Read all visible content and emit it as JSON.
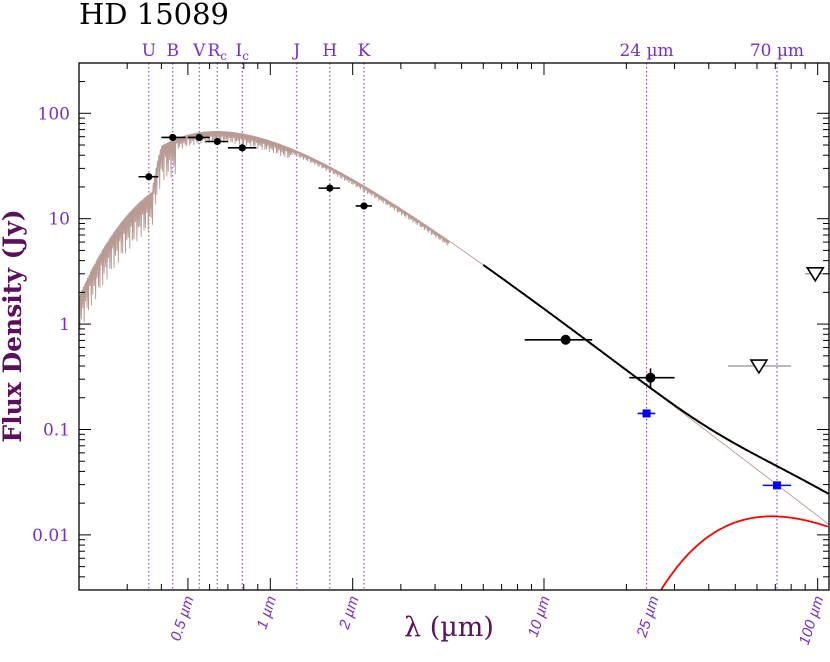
{
  "chart_data": {
    "type": "scatter",
    "title": "HD 15089",
    "xlabel": "λ (µm)",
    "ylabel": "Flux Density (Jy)",
    "xscale": "log",
    "yscale": "log",
    "xlim": [
      0.2,
      110
    ],
    "ylim": [
      0.003,
      300
    ],
    "grid": false,
    "yticks": [
      {
        "value": 100,
        "label": "100"
      },
      {
        "value": 10,
        "label": "10"
      },
      {
        "value": 1,
        "label": "1"
      },
      {
        "value": 0.1,
        "label": "0.1"
      },
      {
        "value": 0.01,
        "label": "0.01"
      }
    ],
    "xticks": [
      {
        "value": 0.5,
        "label": "0.5 µm"
      },
      {
        "value": 1,
        "label": "1 µm"
      },
      {
        "value": 2,
        "label": "2 µm"
      },
      {
        "value": 10,
        "label": "10 µm"
      },
      {
        "value": 25,
        "label": "25 µm"
      },
      {
        "value": 100,
        "label": "100 µm"
      }
    ],
    "bands": [
      {
        "name": "U",
        "sub": "",
        "wavelength": 0.36
      },
      {
        "name": "B",
        "sub": "",
        "wavelength": 0.44
      },
      {
        "name": "V",
        "sub": "",
        "wavelength": 0.55
      },
      {
        "name": "R",
        "sub": "c",
        "wavelength": 0.64
      },
      {
        "name": "I",
        "sub": "c",
        "wavelength": 0.79
      },
      {
        "name": "J",
        "sub": "",
        "wavelength": 1.25
      },
      {
        "name": "H",
        "sub": "",
        "wavelength": 1.65
      },
      {
        "name": "K",
        "sub": "",
        "wavelength": 2.2
      },
      {
        "name": "24 µm",
        "sub": "",
        "wavelength": 23.7
      },
      {
        "name": "70 µm",
        "sub": "",
        "wavelength": 71
      }
    ],
    "series": [
      {
        "kind": "photometry",
        "color": "#000000",
        "points": [
          {
            "x": 0.36,
            "y": 25,
            "xerr": [
              0.33,
              0.39
            ]
          },
          {
            "x": 0.44,
            "y": 59,
            "xerr": [
              0.4,
              0.49
            ]
          },
          {
            "x": 0.55,
            "y": 59,
            "xerr": [
              0.5,
              0.6
            ]
          },
          {
            "x": 0.64,
            "y": 54,
            "xerr": [
              0.58,
              0.7
            ]
          },
          {
            "x": 0.79,
            "y": 47,
            "xerr": [
              0.7,
              0.89
            ]
          },
          {
            "x": 1.65,
            "y": 19.5,
            "xerr": [
              1.5,
              1.8
            ]
          },
          {
            "x": 2.2,
            "y": 13.2,
            "xerr": [
              2.05,
              2.35
            ]
          }
        ]
      },
      {
        "kind": "mid-ir detections",
        "color": "#000000",
        "points": [
          {
            "x": 12,
            "y": 0.71,
            "xerr": [
              8.5,
              15
            ]
          },
          {
            "x": 24.5,
            "y": 0.31,
            "xerr": [
              20.5,
              30
            ],
            "yerr": [
              0.25,
              0.38
            ]
          }
        ]
      },
      {
        "kind": "upper limits",
        "color": "#000000",
        "points": [
          {
            "x": 61,
            "y": 0.4,
            "xerr": [
              47,
              80
            ]
          },
          {
            "x": 98,
            "y": 3.0,
            "xerr": [
              90,
              110
            ]
          }
        ]
      },
      {
        "kind": "photosphere predictions",
        "color": "#0000ff",
        "points": [
          {
            "x": 23.7,
            "y": 0.142,
            "xerr": [
              22,
              25.5
            ]
          },
          {
            "x": 71,
            "y": 0.0295,
            "xerr": [
              63,
              80
            ]
          }
        ]
      }
    ],
    "models": {
      "photosphere_color": "#b89b94",
      "total_color": "#000000",
      "dust_color": "#ff0000",
      "dust_temperature_K": 75,
      "dust_peak_flux": 0.015
    }
  }
}
